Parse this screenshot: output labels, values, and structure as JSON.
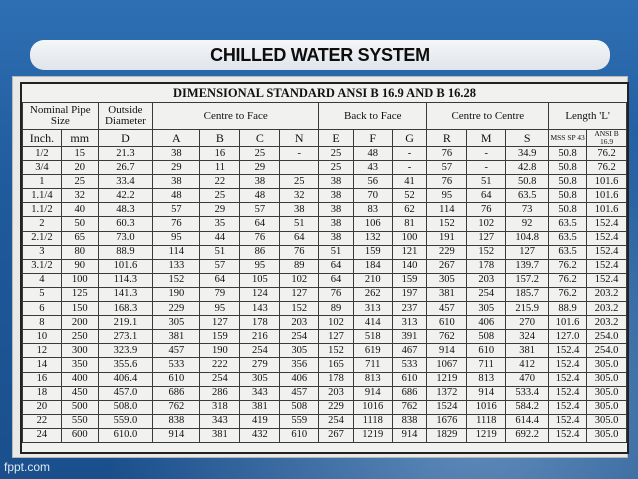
{
  "slide": {
    "title": "CHILLED WATER SYSTEM",
    "footer": "fppt.com"
  },
  "table": {
    "title": "DIMENSIONAL STANDARD ANSI B 16.9 AND B 16.28",
    "groups": {
      "nominal": "Nominal Pipe Size",
      "outside": "Outside Diameter",
      "centre_face": "Centre to Face",
      "back_face": "Back to Face",
      "centre_centre": "Centre to Centre",
      "length": "Length 'L'"
    },
    "columns": [
      "Inch.",
      "mm",
      "D",
      "A",
      "B",
      "C",
      "N",
      "E",
      "F",
      "G",
      "R",
      "M",
      "S",
      "MSS SP 43",
      "ANSI B 16.9"
    ],
    "rows": [
      [
        "1/2",
        "15",
        "21.3",
        "38",
        "16",
        "25",
        "-",
        "25",
        "48",
        "-",
        "76",
        "-",
        "34.9",
        "50.8",
        "76.2"
      ],
      [
        "3/4",
        "20",
        "26.7",
        "29",
        "11",
        "29",
        "",
        "25",
        "43",
        "-",
        "57",
        "-",
        "42.8",
        "50.8",
        "76.2"
      ],
      [
        "1",
        "25",
        "33.4",
        "38",
        "22",
        "38",
        "25",
        "38",
        "56",
        "41",
        "76",
        "51",
        "50.8",
        "50.8",
        "101.6"
      ],
      [
        "1.1/4",
        "32",
        "42.2",
        "48",
        "25",
        "48",
        "32",
        "38",
        "70",
        "52",
        "95",
        "64",
        "63.5",
        "50.8",
        "101.6"
      ],
      [
        "1.1/2",
        "40",
        "48.3",
        "57",
        "29",
        "57",
        "38",
        "38",
        "83",
        "62",
        "114",
        "76",
        "73",
        "50.8",
        "101.6"
      ],
      [
        "2",
        "50",
        "60.3",
        "76",
        "35",
        "64",
        "51",
        "38",
        "106",
        "81",
        "152",
        "102",
        "92",
        "63.5",
        "152.4"
      ],
      [
        "2.1/2",
        "65",
        "73.0",
        "95",
        "44",
        "76",
        "64",
        "38",
        "132",
        "100",
        "191",
        "127",
        "104.8",
        "63.5",
        "152.4"
      ],
      [
        "3",
        "80",
        "88.9",
        "114",
        "51",
        "86",
        "76",
        "51",
        "159",
        "121",
        "229",
        "152",
        "127",
        "63.5",
        "152.4"
      ],
      [
        "3.1/2",
        "90",
        "101.6",
        "133",
        "57",
        "95",
        "89",
        "64",
        "184",
        "140",
        "267",
        "178",
        "139.7",
        "76.2",
        "152.4"
      ],
      [
        "4",
        "100",
        "114.3",
        "152",
        "64",
        "105",
        "102",
        "64",
        "210",
        "159",
        "305",
        "203",
        "157.2",
        "76.2",
        "152.4"
      ],
      [
        "5",
        "125",
        "141.3",
        "190",
        "79",
        "124",
        "127",
        "76",
        "262",
        "197",
        "381",
        "254",
        "185.7",
        "76.2",
        "203.2"
      ],
      [
        "6",
        "150",
        "168.3",
        "229",
        "95",
        "143",
        "152",
        "89",
        "313",
        "237",
        "457",
        "305",
        "215.9",
        "88.9",
        "203.2"
      ],
      [
        "8",
        "200",
        "219.1",
        "305",
        "127",
        "178",
        "203",
        "102",
        "414",
        "313",
        "610",
        "406",
        "270",
        "101.6",
        "203.2"
      ],
      [
        "10",
        "250",
        "273.1",
        "381",
        "159",
        "216",
        "254",
        "127",
        "518",
        "391",
        "762",
        "508",
        "324",
        "127.0",
        "254.0"
      ],
      [
        "12",
        "300",
        "323.9",
        "457",
        "190",
        "254",
        "305",
        "152",
        "619",
        "467",
        "914",
        "610",
        "381",
        "152.4",
        "254.0"
      ],
      [
        "14",
        "350",
        "355.6",
        "533",
        "222",
        "279",
        "356",
        "165",
        "711",
        "533",
        "1067",
        "711",
        "412",
        "152.4",
        "305.0"
      ],
      [
        "16",
        "400",
        "406.4",
        "610",
        "254",
        "305",
        "406",
        "178",
        "813",
        "610",
        "1219",
        "813",
        "470",
        "152.4",
        "305.0"
      ],
      [
        "18",
        "450",
        "457.0",
        "686",
        "286",
        "343",
        "457",
        "203",
        "914",
        "686",
        "1372",
        "914",
        "533.4",
        "152.4",
        "305.0"
      ],
      [
        "20",
        "500",
        "508.0",
        "762",
        "318",
        "381",
        "508",
        "229",
        "1016",
        "762",
        "1524",
        "1016",
        "584.2",
        "152.4",
        "305.0"
      ],
      [
        "22",
        "550",
        "559.0",
        "838",
        "343",
        "419",
        "559",
        "254",
        "1118",
        "838",
        "1676",
        "1118",
        "614.4",
        "152.4",
        "305.0"
      ],
      [
        "24",
        "600",
        "610.0",
        "914",
        "381",
        "432",
        "610",
        "267",
        "1219",
        "914",
        "1829",
        "1219",
        "692.2",
        "152.4",
        "305.0"
      ]
    ]
  }
}
